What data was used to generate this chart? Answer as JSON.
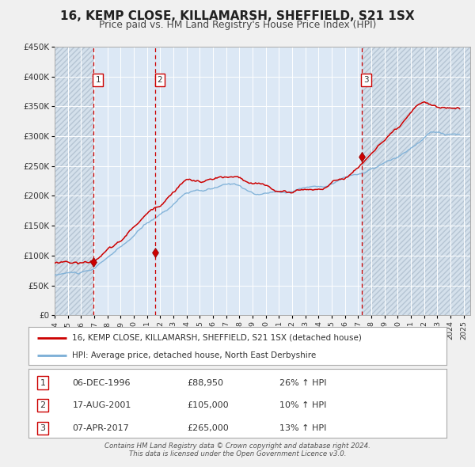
{
  "title": "16, KEMP CLOSE, KILLAMARSH, SHEFFIELD, S21 1SX",
  "subtitle": "Price paid vs. HM Land Registry's House Price Index (HPI)",
  "x_start": 1994.0,
  "x_end": 2025.5,
  "y_min": 0,
  "y_max": 450000,
  "y_ticks": [
    0,
    50000,
    100000,
    150000,
    200000,
    250000,
    300000,
    350000,
    400000,
    450000
  ],
  "y_tick_labels": [
    "£0",
    "£50K",
    "£100K",
    "£150K",
    "£200K",
    "£250K",
    "£300K",
    "£350K",
    "£400K",
    "£450K"
  ],
  "x_ticks": [
    1994,
    1995,
    1996,
    1997,
    1998,
    1999,
    2000,
    2001,
    2002,
    2003,
    2004,
    2005,
    2006,
    2007,
    2008,
    2009,
    2010,
    2011,
    2012,
    2013,
    2014,
    2015,
    2016,
    2017,
    2018,
    2019,
    2020,
    2021,
    2022,
    2023,
    2024,
    2025
  ],
  "sale_dates": [
    1996.93,
    2001.63,
    2017.27
  ],
  "sale_prices": [
    88950,
    105000,
    265000
  ],
  "sale_labels": [
    "1",
    "2",
    "3"
  ],
  "red_line_color": "#cc0000",
  "blue_line_color": "#7aaed6",
  "fig_bg_color": "#f0f0f0",
  "plot_bg_color": "#dce8f5",
  "hatch_bg_color": "#c8d4de",
  "grid_color": "#ffffff",
  "legend_label_red": "16, KEMP CLOSE, KILLAMARSH, SHEFFIELD, S21 1SX (detached house)",
  "legend_label_blue": "HPI: Average price, detached house, North East Derbyshire",
  "table_rows": [
    [
      "1",
      "06-DEC-1996",
      "£88,950",
      "26% ↑ HPI"
    ],
    [
      "2",
      "17-AUG-2001",
      "£105,000",
      "10% ↑ HPI"
    ],
    [
      "3",
      "07-APR-2017",
      "£265,000",
      "13% ↑ HPI"
    ]
  ],
  "footer_line1": "Contains HM Land Registry data © Crown copyright and database right 2024.",
  "footer_line2": "This data is licensed under the Open Government Licence v3.0."
}
